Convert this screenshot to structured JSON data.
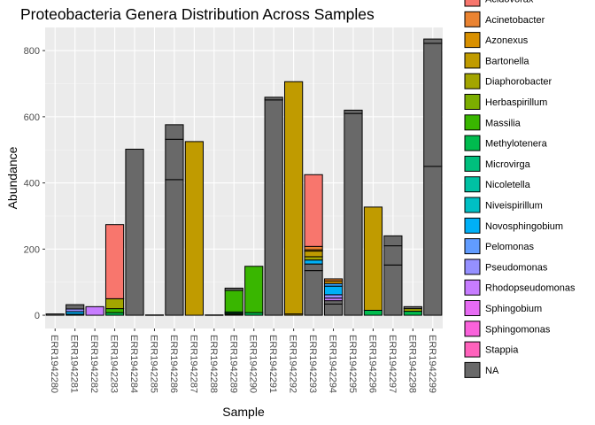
{
  "chart_data": {
    "type": "bar",
    "stacked": true,
    "title": "Proteobacteria Genera Distribution Across Samples",
    "xlabel": "Sample",
    "ylabel": "Abundance",
    "ylim": [
      -40,
      870
    ],
    "yticks": [
      0,
      200,
      400,
      600,
      800
    ],
    "ytick_labels": [
      "0",
      "200",
      "400",
      "600",
      "800"
    ],
    "grid": true,
    "legend_position": "right",
    "categories": [
      "ERR1942280",
      "ERR1942281",
      "ERR1942282",
      "ERR1942283",
      "ERR1942284",
      "ERR1942285",
      "ERR1942286",
      "ERR1942287",
      "ERR1942288",
      "ERR1942289",
      "ERR1942290",
      "ERR1942291",
      "ERR1942292",
      "ERR1942293",
      "ERR1942294",
      "ERR1942295",
      "ERR1942296",
      "ERR1942297",
      "ERR1942298",
      "ERR1942299"
    ],
    "genera": [
      {
        "name": "Acidovorax",
        "color": "#F8766D"
      },
      {
        "name": "Acinetobacter",
        "color": "#EA8331"
      },
      {
        "name": "Azonexus",
        "color": "#D89000"
      },
      {
        "name": "Bartonella",
        "color": "#C09B00"
      },
      {
        "name": "Diaphorobacter",
        "color": "#A3A500"
      },
      {
        "name": "Herbaspirillum",
        "color": "#7CAE00"
      },
      {
        "name": "Massilia",
        "color": "#39B600"
      },
      {
        "name": "Methylotenera",
        "color": "#00BB4E"
      },
      {
        "name": "Microvirga",
        "color": "#00BF7D"
      },
      {
        "name": "Nicoletella",
        "color": "#00C1A3"
      },
      {
        "name": "Niveispirillum",
        "color": "#00BFC4"
      },
      {
        "name": "Novosphingobium",
        "color": "#00BAE0"
      },
      {
        "name": "Pelomonas",
        "color": "#00B0F6"
      },
      {
        "name": "Pseudomonas",
        "color": "#35A2FF"
      },
      {
        "name": "Rhodopseudomonas",
        "color": "#9590FF"
      },
      {
        "name": "Sphingobium",
        "color": "#C77CFF"
      },
      {
        "name": "Sphingomonas",
        "color": "#E76BF3"
      },
      {
        "name": "Stappia",
        "color": "#FA62DB"
      },
      {
        "name": "NA",
        "color": "#FF62BC"
      },
      {
        "name": "NA",
        "color": "#FF6C91"
      },
      {
        "name": "NA",
        "color": "#696969"
      }
    ],
    "legend_entries": [
      "Acidovorax",
      "Acinetobacter",
      "Azonexus",
      "Bartonella",
      "Diaphorobacter",
      "Herbaspirillum",
      "Massilia",
      "Methylotenera",
      "Microvirga",
      "Nicoletella",
      "Niveispirillum",
      "Novosphingobium",
      "Pelomonas",
      "Pseudomonas",
      "Rhodopseudomonas",
      "Sphingobium",
      "Sphingomonas",
      "Stappia",
      "NA"
    ],
    "legend_colors": [
      "#F8766D",
      "#EA8331",
      "#D89000",
      "#C09B00",
      "#A3A500",
      "#7CAE00",
      "#39B600",
      "#00BB4E",
      "#00BF7D",
      "#00C1A3",
      "#00BFC4",
      "#00B0F6",
      "#619CFF",
      "#9590FF",
      "#C77CFF",
      "#E76BF3",
      "#FA62DB",
      "#FF62BC",
      "#696969"
    ],
    "bars": [
      {
        "sample": "ERR1942280",
        "segments": [
          {
            "genus": "NA",
            "value": 4
          }
        ]
      },
      {
        "sample": "ERR1942281",
        "segments": [
          {
            "genus": "Massilia",
            "value": 3
          },
          {
            "genus": "Pelomonas",
            "value": 8
          },
          {
            "genus": "Rhodopseudomonas",
            "value": 8
          },
          {
            "genus": "NA",
            "value": 13
          }
        ]
      },
      {
        "sample": "ERR1942282",
        "segments": [
          {
            "genus": "Sphingobium",
            "value": 26
          }
        ]
      },
      {
        "sample": "ERR1942283",
        "segments": [
          {
            "genus": "Methylotenera",
            "value": 8
          },
          {
            "genus": "Massilia",
            "value": 12
          },
          {
            "genus": "Diaphorobacter",
            "value": 30
          },
          {
            "genus": "Acidovorax",
            "value": 224
          }
        ]
      },
      {
        "sample": "ERR1942284",
        "segments": [
          {
            "genus": "NA",
            "value": 502
          }
        ]
      },
      {
        "sample": "ERR1942285",
        "segments": [
          {
            "genus": "NA",
            "value": 1
          }
        ]
      },
      {
        "sample": "ERR1942286",
        "segments": [
          {
            "genus": "NA",
            "value": 410
          },
          {
            "genus": "NA",
            "value": 122
          },
          {
            "genus": "NA",
            "value": 44
          }
        ]
      },
      {
        "sample": "ERR1942287",
        "segments": [
          {
            "genus": "Bartonella",
            "value": 525
          }
        ]
      },
      {
        "sample": "ERR1942288",
        "segments": [
          {
            "genus": "NA",
            "value": 1
          }
        ]
      },
      {
        "sample": "ERR1942289",
        "segments": [
          {
            "genus": "Diaphorobacter",
            "value": 3
          },
          {
            "genus": "Massilia",
            "value": 3
          },
          {
            "genus": "Methylotenera",
            "value": 4
          },
          {
            "genus": "Massilia",
            "value": 65
          },
          {
            "genus": "NA",
            "value": 7
          }
        ]
      },
      {
        "sample": "ERR1942290",
        "segments": [
          {
            "genus": "Methylotenera",
            "value": 8
          },
          {
            "genus": "Massilia",
            "value": 140
          }
        ]
      },
      {
        "sample": "ERR1942291",
        "segments": [
          {
            "genus": "NA",
            "value": 651
          },
          {
            "genus": "NA",
            "value": 8
          }
        ]
      },
      {
        "sample": "ERR1942292",
        "segments": [
          {
            "genus": "Bartonella",
            "value": 4
          },
          {
            "genus": "Bartonella",
            "value": 702
          }
        ]
      },
      {
        "sample": "ERR1942293",
        "segments": [
          {
            "genus": "NA",
            "value": 135
          },
          {
            "genus": "NA",
            "value": 20
          },
          {
            "genus": "Pelomonas",
            "value": 12
          },
          {
            "genus": "Diaphorobacter",
            "value": 10
          },
          {
            "genus": "Bartonella",
            "value": 17
          },
          {
            "genus": "Azonexus",
            "value": 4
          },
          {
            "genus": "Acinetobacter",
            "value": 10
          },
          {
            "genus": "Acidovorax",
            "value": 217
          }
        ]
      },
      {
        "sample": "ERR1942294",
        "segments": [
          {
            "genus": "NA",
            "value": 34
          },
          {
            "genus": "NA",
            "value": 10
          },
          {
            "genus": "Sphingobium",
            "value": 8
          },
          {
            "genus": "Rhodopseudomonas",
            "value": 10
          },
          {
            "genus": "Pelomonas",
            "value": 26
          },
          {
            "genus": "Pseudomonas",
            "value": 8
          },
          {
            "genus": "Azonexus",
            "value": 8
          },
          {
            "genus": "Acinetobacter",
            "value": 6
          }
        ]
      },
      {
        "sample": "ERR1942295",
        "segments": [
          {
            "genus": "NA",
            "value": 610
          },
          {
            "genus": "NA",
            "value": 10
          }
        ]
      },
      {
        "sample": "ERR1942296",
        "segments": [
          {
            "genus": "Methylotenera",
            "value": 15
          },
          {
            "genus": "Bartonella",
            "value": 312
          }
        ]
      },
      {
        "sample": "ERR1942297",
        "segments": [
          {
            "genus": "NA",
            "value": 152
          },
          {
            "genus": "NA",
            "value": 58
          },
          {
            "genus": "NA",
            "value": 30
          }
        ]
      },
      {
        "sample": "ERR1942298",
        "segments": [
          {
            "genus": "Methylotenera",
            "value": 12
          },
          {
            "genus": "Diaphorobacter",
            "value": 8
          },
          {
            "genus": "NA",
            "value": 6
          }
        ]
      },
      {
        "sample": "ERR1942299",
        "segments": [
          {
            "genus": "NA",
            "value": 450
          },
          {
            "genus": "NA",
            "value": 372
          },
          {
            "genus": "NA",
            "value": 13
          }
        ]
      }
    ]
  }
}
